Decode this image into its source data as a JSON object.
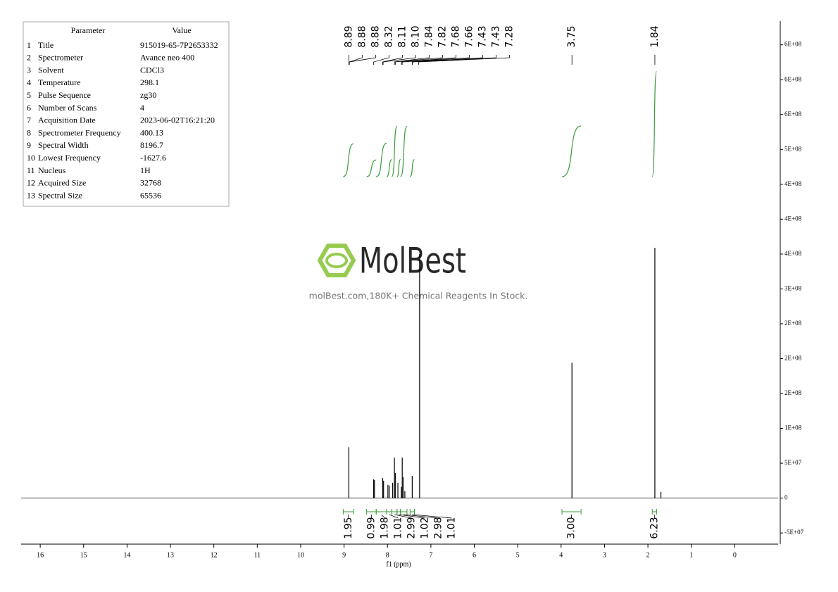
{
  "parameters_table": {
    "headers": [
      "Parameter",
      "Value"
    ],
    "rows": [
      [
        "1",
        "Title",
        "915019-65-7P2653332"
      ],
      [
        "2",
        "Spectrometer",
        "Avance neo 400"
      ],
      [
        "3",
        "Solvent",
        "CDCl3"
      ],
      [
        "4",
        "Temperature",
        "298.1"
      ],
      [
        "5",
        "Pulse Sequence",
        "zg30"
      ],
      [
        "6",
        "Number of Scans",
        "4"
      ],
      [
        "7",
        "Acquisition Date",
        "2023-06-02T16:21:20"
      ],
      [
        "8",
        "Spectrometer Frequency",
        "400.13"
      ],
      [
        "9",
        "Spectral Width",
        "8196.7"
      ],
      [
        "10",
        "Lowest Frequency",
        "-1627.6"
      ],
      [
        "11",
        "Nucleus",
        "1H"
      ],
      [
        "12",
        "Acquired Size",
        "32768"
      ],
      [
        "13",
        "Spectral Size",
        "65536"
      ]
    ]
  },
  "watermark": {
    "brand": "MolBest",
    "tagline": "molBest.com,180K+ Chemical Reagents In Stock."
  },
  "chart_data": {
    "type": "nmr",
    "x_label": "f1 (ppm)",
    "xlim": [
      16.44,
      -1.0
    ],
    "xticks": [
      16,
      15,
      14,
      13,
      12,
      11,
      10,
      9,
      8,
      7,
      6,
      5,
      4,
      3,
      2,
      1,
      0
    ],
    "ylim": [
      -66000000,
      684000000
    ],
    "yticks": [
      {
        "value": -50000000,
        "label": "-5E+07"
      },
      0,
      {
        "value": 50000000,
        "label": "5E+07"
      },
      {
        "value": 100000000,
        "label": "1E+08"
      },
      {
        "value": 150000000,
        "label": "2E+08"
      },
      {
        "value": 200000000,
        "label": "2E+08"
      },
      {
        "value": 250000000,
        "label": "2E+08"
      },
      {
        "value": 300000000,
        "label": "3E+08"
      },
      {
        "value": 350000000,
        "label": "4E+08"
      },
      {
        "value": 400000000,
        "label": "4E+08"
      },
      {
        "value": 450000000,
        "label": "4E+08"
      },
      {
        "value": 500000000,
        "label": "5E+08"
      },
      {
        "value": 550000000,
        "label": "6E+08"
      },
      {
        "value": 600000000,
        "label": "6E+08"
      },
      {
        "value": 650000000,
        "label": "6E+08"
      }
    ],
    "spectrum_color": "#000000",
    "integral_color": "#3a9a3a",
    "peaks": {
      "x": [
        8.89,
        8.32,
        8.3,
        8.11,
        8.09,
        7.99,
        7.96,
        7.88,
        7.84,
        7.82,
        7.76,
        7.68,
        7.66,
        7.64,
        7.6,
        7.43,
        7.26,
        3.75,
        1.84,
        1.7
      ],
      "values": [
        73000000,
        27000000,
        26000000,
        29000000,
        25000000,
        19000000,
        18000000,
        22000000,
        58000000,
        36000000,
        22000000,
        16000000,
        58000000,
        30000000,
        10000000,
        32000000,
        350000000,
        194000000,
        359000000,
        9000000
      ]
    },
    "peak_labels": {
      "values": [
        8.89,
        8.88,
        8.88,
        8.32,
        8.11,
        8.1,
        7.84,
        7.82,
        7.68,
        7.66,
        7.43,
        7.43,
        7.28,
        3.75,
        1.84
      ],
      "value_labels": [
        "8.89",
        "8.88",
        "8.88",
        "8.32",
        "8.11",
        "8.10",
        "7.84",
        "7.82",
        "7.68",
        "7.66",
        "7.43",
        "7.43",
        "7.28",
        "3.75",
        "1.84"
      ]
    },
    "integrals": {
      "ranges": [
        [
          9.02,
          8.78
        ],
        [
          8.48,
          8.26
        ],
        [
          8.26,
          8.02
        ],
        [
          8.02,
          7.9
        ],
        [
          7.9,
          7.78
        ],
        [
          7.78,
          7.7
        ],
        [
          7.7,
          7.55
        ],
        [
          7.48,
          7.38
        ],
        [
          3.98,
          3.54
        ],
        [
          1.9,
          1.8
        ]
      ],
      "values": [
        1.95,
        0.99,
        1.98,
        1.01,
        2.99,
        1.02,
        2.98,
        1.01,
        3.0,
        6.23
      ],
      "value_labels": [
        "1.95",
        "0.99",
        "1.98",
        "1.01",
        "2.99",
        "1.02",
        "2.98",
        "1.01",
        "3.00",
        "6.23"
      ]
    }
  }
}
